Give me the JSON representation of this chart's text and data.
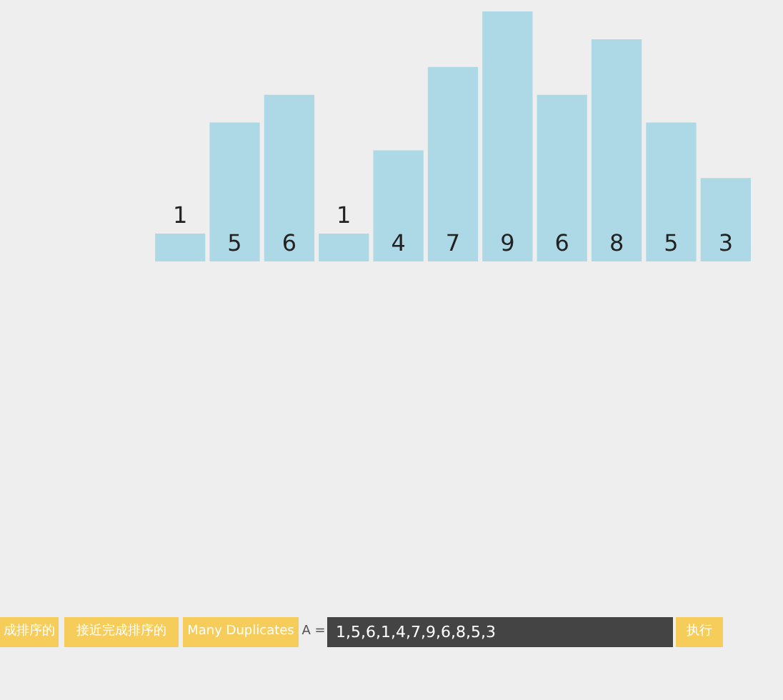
{
  "chart_data": {
    "type": "bar",
    "categories": [
      null,
      null,
      null,
      null,
      null,
      null,
      null,
      null,
      null,
      null,
      null
    ],
    "values": [
      1,
      5,
      6,
      1,
      4,
      7,
      9,
      6,
      8,
      5,
      3
    ],
    "color": "#add8e6",
    "data_labels": true,
    "grid": false,
    "annotations": [
      "成排序的",
      "接近完成排序的",
      "Many Duplicates",
      "A =",
      "1,5,6,1,4,7,9,6,8,5,3",
      "执行"
    ]
  }
}
